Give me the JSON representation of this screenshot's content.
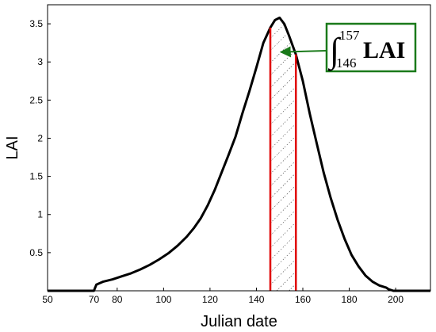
{
  "chart_data": {
    "type": "line",
    "xlabel": "Julian date",
    "ylabel": "LAI",
    "xlim": [
      50,
      215
    ],
    "ylim": [
      0,
      3.75
    ],
    "grid": false,
    "x_ticks": [
      50,
      70,
      80,
      100,
      120,
      140,
      160,
      180,
      200
    ],
    "y_ticks": [
      0.5,
      1,
      1.5,
      2,
      2.5,
      3,
      3.5
    ],
    "x_tick_labels": [
      "50",
      "70",
      "80",
      "100",
      "120",
      "140",
      "160",
      "180",
      "200"
    ],
    "y_tick_labels": [
      "0.5",
      "1",
      "1.5",
      "2",
      "2.5",
      "3",
      "3.5"
    ],
    "line_color": "#000000",
    "series": [
      {
        "x": [
          50,
          70,
          71,
          74,
          78,
          82,
          86,
          90,
          94,
          98,
          102,
          106,
          110,
          113,
          116,
          119,
          122,
          125,
          128,
          131,
          134,
          137,
          140,
          143,
          146,
          148,
          150,
          152,
          154,
          157,
          160,
          163,
          166,
          169,
          172,
          175,
          178,
          181,
          184,
          187,
          190,
          193,
          196,
          197,
          198,
          199,
          215
        ],
        "y": [
          0,
          0,
          0.08,
          0.12,
          0.15,
          0.19,
          0.23,
          0.28,
          0.34,
          0.41,
          0.49,
          0.59,
          0.71,
          0.82,
          0.95,
          1.12,
          1.32,
          1.55,
          1.78,
          2.02,
          2.33,
          2.62,
          2.93,
          3.25,
          3.45,
          3.55,
          3.58,
          3.5,
          3.35,
          3.1,
          2.75,
          2.32,
          1.93,
          1.55,
          1.22,
          0.93,
          0.68,
          0.47,
          0.32,
          0.2,
          0.12,
          0.07,
          0.04,
          0.02,
          0.01,
          0,
          0
        ]
      }
    ],
    "shaded_interval": {
      "x_start": 146,
      "x_end": 157,
      "line_color": "#e00000",
      "pattern": "diagonal dotted hatch"
    },
    "annotation": {
      "integral_lower": "146",
      "integral_upper": "157",
      "integral_var": "LAI",
      "box_color": "#1a7a1a",
      "arrow_color": "#1a7a1a",
      "arrow_to": [
        150.5,
        3.13
      ]
    }
  }
}
